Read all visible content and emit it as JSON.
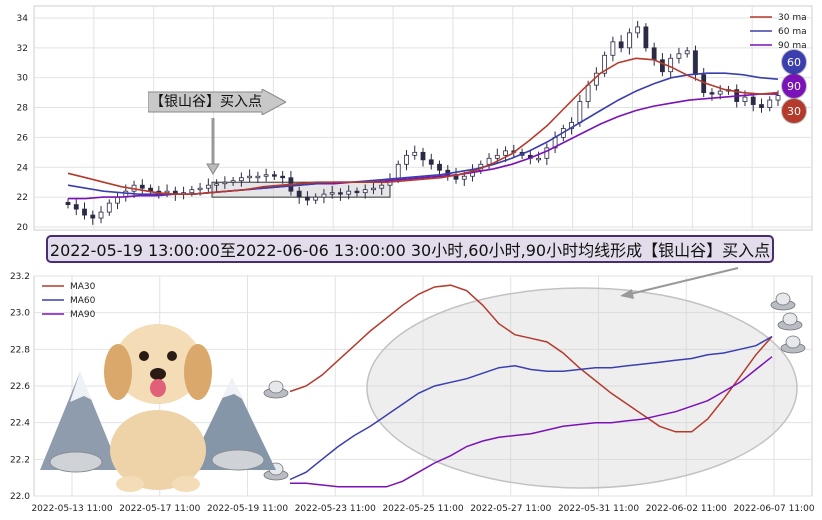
{
  "caption": "2022-05-19 13:00:00至2022-06-06 13:00:00 30小时,60小时,90小时均线形成【银山谷】买入点",
  "signal_label": "【银山谷】买入点",
  "badges": [
    {
      "label": "60",
      "color": "#3b3fae"
    },
    {
      "label": "90",
      "color": "#7a12b8"
    },
    {
      "label": "30",
      "color": "#b43a2c"
    }
  ],
  "chart_data": [
    {
      "type": "candlestick",
      "ylim": [
        19.8,
        34.8
      ],
      "y_ticks": [
        "20",
        "22",
        "24",
        "26",
        "28",
        "30",
        "32",
        "34"
      ],
      "grid": true,
      "legend_position": "top-right",
      "legend": [
        {
          "name": "30 ma",
          "color": "#b43a2c"
        },
        {
          "name": "60 ma",
          "color": "#3b3fae"
        },
        {
          "name": "90 ma",
          "color": "#7a12b8"
        }
      ],
      "closes": [
        21.5,
        21.2,
        20.8,
        20.6,
        21.0,
        21.6,
        22.0,
        22.4,
        22.8,
        22.6,
        22.4,
        22.3,
        22.4,
        22.2,
        22.3,
        22.5,
        22.6,
        22.8,
        22.9,
        23.0,
        23.1,
        23.3,
        23.4,
        23.4,
        23.5,
        23.4,
        23.3,
        22.4,
        22.0,
        21.8,
        22.0,
        22.2,
        22.3,
        22.2,
        22.4,
        22.3,
        22.5,
        22.6,
        22.8,
        23.2,
        24.2,
        24.8,
        25.0,
        24.5,
        24.2,
        23.8,
        23.5,
        23.2,
        23.4,
        23.8,
        24.2,
        24.6,
        24.8,
        25.1,
        25.0,
        24.8,
        24.6,
        24.6,
        25.3,
        26.0,
        26.6,
        27.0,
        28.4,
        29.5,
        30.3,
        31.5,
        32.4,
        32.0,
        33.0,
        33.4,
        32.0,
        31.2,
        30.4,
        31.3,
        31.6,
        31.8,
        30.2,
        29.0,
        28.9,
        29.1,
        29.2,
        28.4,
        28.7,
        28.2,
        28.0,
        28.5,
        28.8
      ],
      "ma30": [
        23.6,
        23.3,
        23.0,
        22.7,
        22.5,
        22.3,
        22.2,
        22.2,
        22.3,
        22.4,
        22.5,
        22.7,
        22.8,
        22.9,
        23.0,
        23.0,
        23.0,
        23.0,
        23.0,
        23.1,
        23.2,
        23.3,
        23.5,
        23.8,
        24.3,
        24.9,
        25.8,
        26.8,
        28.0,
        29.2,
        30.3,
        31.0,
        31.3,
        31.2,
        30.7,
        30.1,
        29.6,
        29.2,
        29.0,
        28.9,
        29.0
      ],
      "ma60": [
        22.8,
        22.6,
        22.4,
        22.3,
        22.2,
        22.2,
        22.2,
        22.2,
        22.3,
        22.4,
        22.5,
        22.6,
        22.7,
        22.8,
        22.9,
        23.0,
        23.0,
        23.1,
        23.2,
        23.3,
        23.4,
        23.5,
        23.7,
        23.9,
        24.2,
        24.6,
        25.1,
        25.7,
        26.4,
        27.1,
        27.8,
        28.5,
        29.1,
        29.6,
        30.0,
        30.2,
        30.3,
        30.3,
        30.2,
        30.0,
        29.9
      ],
      "ma90": [
        21.9,
        21.9,
        22.0,
        22.0,
        22.1,
        22.1,
        22.2,
        22.2,
        22.3,
        22.4,
        22.5,
        22.6,
        22.7,
        22.8,
        22.9,
        22.9,
        23.0,
        23.0,
        23.1,
        23.2,
        23.3,
        23.4,
        23.5,
        23.7,
        23.9,
        24.2,
        24.6,
        25.1,
        25.7,
        26.3,
        26.9,
        27.4,
        27.8,
        28.1,
        28.3,
        28.5,
        28.6,
        28.7,
        28.8,
        28.9,
        28.9
      ],
      "highlight_box": {
        "y_low": 22.0,
        "y_high": 23.0
      }
    },
    {
      "type": "line",
      "ylim": [
        22.0,
        23.2
      ],
      "y_ticks": [
        "22.0",
        "22.2",
        "22.4",
        "22.6",
        "22.8",
        "23.0",
        "23.2"
      ],
      "x_ticks": [
        "2022-05-13 11:00",
        "2022-05-17 11:00",
        "2022-05-19 11:00",
        "2022-05-23 11:00",
        "2022-05-25 11:00",
        "2022-05-27 11:00",
        "2022-05-31 11:00",
        "2022-06-02 11:00",
        "2022-06-07 11:00"
      ],
      "grid": true,
      "legend_position": "top-left",
      "series": [
        {
          "name": "MA30",
          "color": "#b43a2c",
          "values": [
            22.57,
            22.6,
            22.66,
            22.74,
            22.82,
            22.9,
            22.97,
            23.04,
            23.1,
            23.14,
            23.15,
            23.12,
            23.04,
            22.94,
            22.88,
            22.86,
            22.84,
            22.78,
            22.7,
            22.63,
            22.56,
            22.5,
            22.44,
            22.38,
            22.35,
            22.35,
            22.42,
            22.53,
            22.65,
            22.77,
            22.87
          ]
        },
        {
          "name": "MA60",
          "color": "#3b3fae",
          "values": [
            22.09,
            22.13,
            22.2,
            22.27,
            22.33,
            22.38,
            22.44,
            22.5,
            22.56,
            22.6,
            22.62,
            22.64,
            22.67,
            22.7,
            22.71,
            22.69,
            22.68,
            22.68,
            22.69,
            22.7,
            22.7,
            22.71,
            22.72,
            22.73,
            22.74,
            22.75,
            22.77,
            22.78,
            22.8,
            22.82,
            22.87
          ]
        },
        {
          "name": "MA90",
          "color": "#7a12b8",
          "values": [
            22.07,
            22.07,
            22.06,
            22.05,
            22.05,
            22.05,
            22.05,
            22.08,
            22.13,
            22.18,
            22.22,
            22.27,
            22.3,
            22.32,
            22.33,
            22.34,
            22.36,
            22.38,
            22.39,
            22.4,
            22.4,
            22.41,
            22.42,
            22.44,
            22.46,
            22.49,
            22.52,
            22.57,
            22.62,
            22.69,
            22.76
          ]
        }
      ]
    }
  ]
}
